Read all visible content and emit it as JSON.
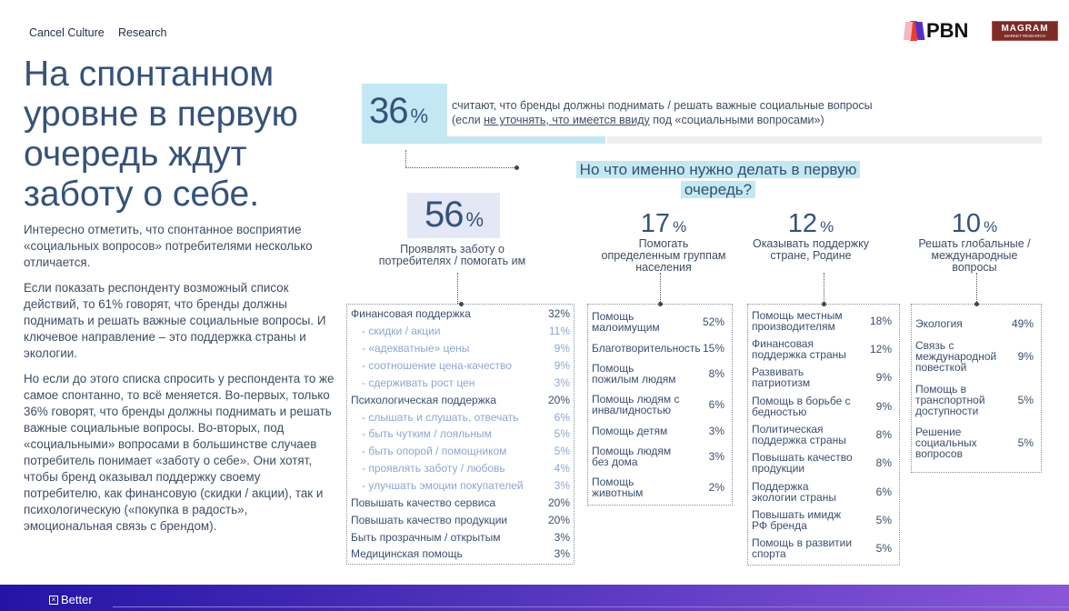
{
  "header": {
    "nav": [
      "Cancel Culture",
      "Research"
    ],
    "logos": [
      "PBN",
      "MAGRAM",
      "MARKET RESEARCH"
    ]
  },
  "title": "На спонтанном уровне в первую очередь ждут заботу о себе.",
  "body": [
    "Интересно отметить, что спонтанное восприятие «социальных вопросов» потребителями несколько отличается.",
    "Если показать респонденту возможный список действий, то 61% говорят, что бренды должны поднимать и решать важные социальные вопросы. И ключевое направление – это поддержка страны и экологии.",
    "Но если до этого списка спросить у респондента то же самое спонтанно, то всё меняется. Во-первых, только 36% говорят, что бренды должны поднимать и решать важные социальные вопросы. Во-вторых, под «социальными» вопросами в большинстве случаев потребитель понимает «заботу о себе». Они хотят, чтобы бренд оказывал поддержку своему потребителю, как финансовую (скидки / акции), так и психологическую («покупка в радость», эмоциональная связь с брендом)."
  ],
  "top": {
    "value": "36",
    "unit": "%",
    "share": 0.36,
    "line1": "считают, что бренды должны поднимать / решать важные социальные вопросы",
    "line2a": "(если ",
    "line2u": "не уточнять, что имеется ввиду",
    "line2b": " под «социальными вопросами»)"
  },
  "question": "Но что именно нужно делать в первую очередь?",
  "columns": [
    {
      "value": "56",
      "unit": "%",
      "label": "Проявлять заботу о потребителях / помогать им",
      "items": [
        [
          "Финансовая поддержка",
          "32%",
          0
        ],
        [
          "- скидки / акции",
          "11%",
          1
        ],
        [
          "- «адекватные» цены",
          "9%",
          1
        ],
        [
          "- соотношение цена-качество",
          "9%",
          1
        ],
        [
          "- сдерживать рост цен",
          "3%",
          1
        ],
        [
          "Психологическая поддержка",
          "20%",
          0
        ],
        [
          "- слышать и слушать, отвечать",
          "6%",
          1
        ],
        [
          "- быть чутким / лояльным",
          "5%",
          1
        ],
        [
          "- быть опорой / помощником",
          "5%",
          1
        ],
        [
          "- проявлять заботу / любовь",
          "4%",
          1
        ],
        [
          "- улучшать эмоции покупателей",
          "3%",
          1
        ],
        [
          "Повышать качество сервиса",
          "20%",
          0
        ],
        [
          "Повышать качество продукции",
          "20%",
          0
        ],
        [
          "Быть прозрачным / открытым",
          "3%",
          0
        ],
        [
          "Медицинская помощь",
          "3%",
          0
        ]
      ]
    },
    {
      "value": "17",
      "unit": "%",
      "label": "Помогать определенным группам населения",
      "items": [
        [
          "Помощь малоимущим",
          "52%"
        ],
        [
          "Благотворительность",
          "15%"
        ],
        [
          "Помощь пожилым людям",
          "8%"
        ],
        [
          "Помощь людям с инвалидностью",
          "6%"
        ],
        [
          "Помощь детям",
          "3%"
        ],
        [
          "Помощь людям без дома",
          "3%"
        ],
        [
          "Помощь животным",
          "2%"
        ]
      ]
    },
    {
      "value": "12",
      "unit": "%",
      "label": "Оказывать поддержку стране, Родине",
      "items": [
        [
          "Помощь местным производителям",
          "18%"
        ],
        [
          "Финансовая поддержка страны",
          "12%"
        ],
        [
          "Развивать патриотизм",
          "9%"
        ],
        [
          "Помощь в борьбе с бедностью",
          "9%"
        ],
        [
          "Политическая поддержка страны",
          "8%"
        ],
        [
          "Повышать качество продукции",
          "8%"
        ],
        [
          "Поддержка экологии страны",
          "6%"
        ],
        [
          "Повышать имидж РФ бренда",
          "5%"
        ],
        [
          "Помощь в развитии спорта",
          "5%"
        ]
      ]
    },
    {
      "value": "10",
      "unit": "%",
      "label": "Решать глобальные / международные вопросы",
      "items": [
        [
          "Экология",
          "49%"
        ],
        [
          "Связь с международной повесткой",
          "9%"
        ],
        [
          "Помощь в транспортной доступности",
          "5%"
        ],
        [
          "Решение социальных вопросов",
          "5%"
        ]
      ]
    }
  ],
  "footer": {
    "brand": "Better"
  }
}
